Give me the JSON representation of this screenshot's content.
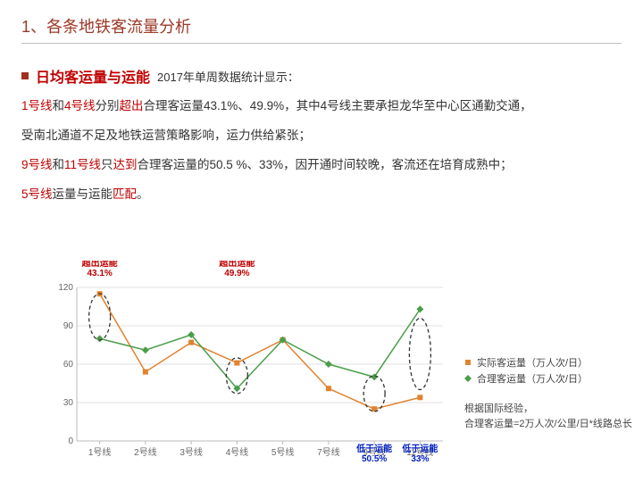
{
  "title": "1、各条地铁客流量分析",
  "subheading": {
    "label": "日均客运量与运能",
    "note": "2017年单周数据统计显示："
  },
  "paras": {
    "p1": {
      "pre": "",
      "l1": "1号线",
      "mid1": "和",
      "l4": "4号线",
      "mid2": "分别",
      "kw": "超出",
      "rest": "合理客运量43.1%、49.9%，其中4号线主要承担龙华至中心区通勤交通，"
    },
    "p1b": "受南北通道不足及地铁运营策略影响，运力供给紧张；",
    "p2": {
      "l9": "9号线",
      "mid1": "和",
      "l11": "11号线",
      "mid2": "只",
      "kw": "达到",
      "rest": "合理客运量的50.5 %、33%，因开通时间较晚，客流还在培育成熟中；"
    },
    "p3": {
      "l5": "5号线",
      "mid": "运量与运能",
      "kw": "匹配",
      "end": "。"
    }
  },
  "chart": {
    "type": "line",
    "categories": [
      "1号线",
      "2号线",
      "3号线",
      "4号线",
      "5号线",
      "7号线",
      "9号线",
      "11号线"
    ],
    "series": [
      {
        "name": "实际客运量（万人次/日）",
        "color": "#e08330",
        "marker": "square",
        "values": [
          115,
          54,
          77,
          61,
          79,
          41,
          25,
          34
        ]
      },
      {
        "name": "合理客运量（万人次/日）",
        "color": "#4a9d4a",
        "marker": "diamond",
        "values": [
          80,
          71,
          83,
          41,
          79,
          60,
          50,
          103
        ]
      }
    ],
    "ylim": [
      0,
      120
    ],
    "ytick_step": 30,
    "background": "#ffffff",
    "grid_color": "#e0e0e0",
    "axis_color": "#bbbbbb",
    "annotations": [
      {
        "text_lines": [
          "超出运能",
          "43.1%"
        ],
        "color": "#c00000",
        "cat_idx": 0,
        "orient": "above"
      },
      {
        "text_lines": [
          "超出运能",
          "49.9%"
        ],
        "color": "#c00000",
        "cat_idx": 3,
        "orient": "above"
      },
      {
        "text_lines": [
          "低于运能",
          "50.5%"
        ],
        "color": "#0020c0",
        "cat_idx": 6,
        "orient": "below"
      },
      {
        "text_lines": [
          "低于运能",
          "33%"
        ],
        "color": "#0020c0",
        "cat_idx": 7,
        "orient": "below"
      }
    ],
    "ellipses": [
      {
        "cat_idx": 0,
        "y_center": 97,
        "rx": 12,
        "ry": 26
      },
      {
        "cat_idx": 3,
        "y_center": 51,
        "rx": 12,
        "ry": 20
      },
      {
        "cat_idx": 6,
        "y_center": 37,
        "rx": 12,
        "ry": 20
      },
      {
        "cat_idx": 7,
        "y_center": 68,
        "rx": 12,
        "ry": 40
      }
    ],
    "tick_fontsize": 10
  },
  "legend": {
    "items": [
      "实际客运量（万人次/日）",
      "合理客运量（万人次/日）"
    ]
  },
  "footnote": {
    "l1": "根据国际经验，",
    "l2": "合理客运量=2万人次/公里/日*线路总长"
  }
}
